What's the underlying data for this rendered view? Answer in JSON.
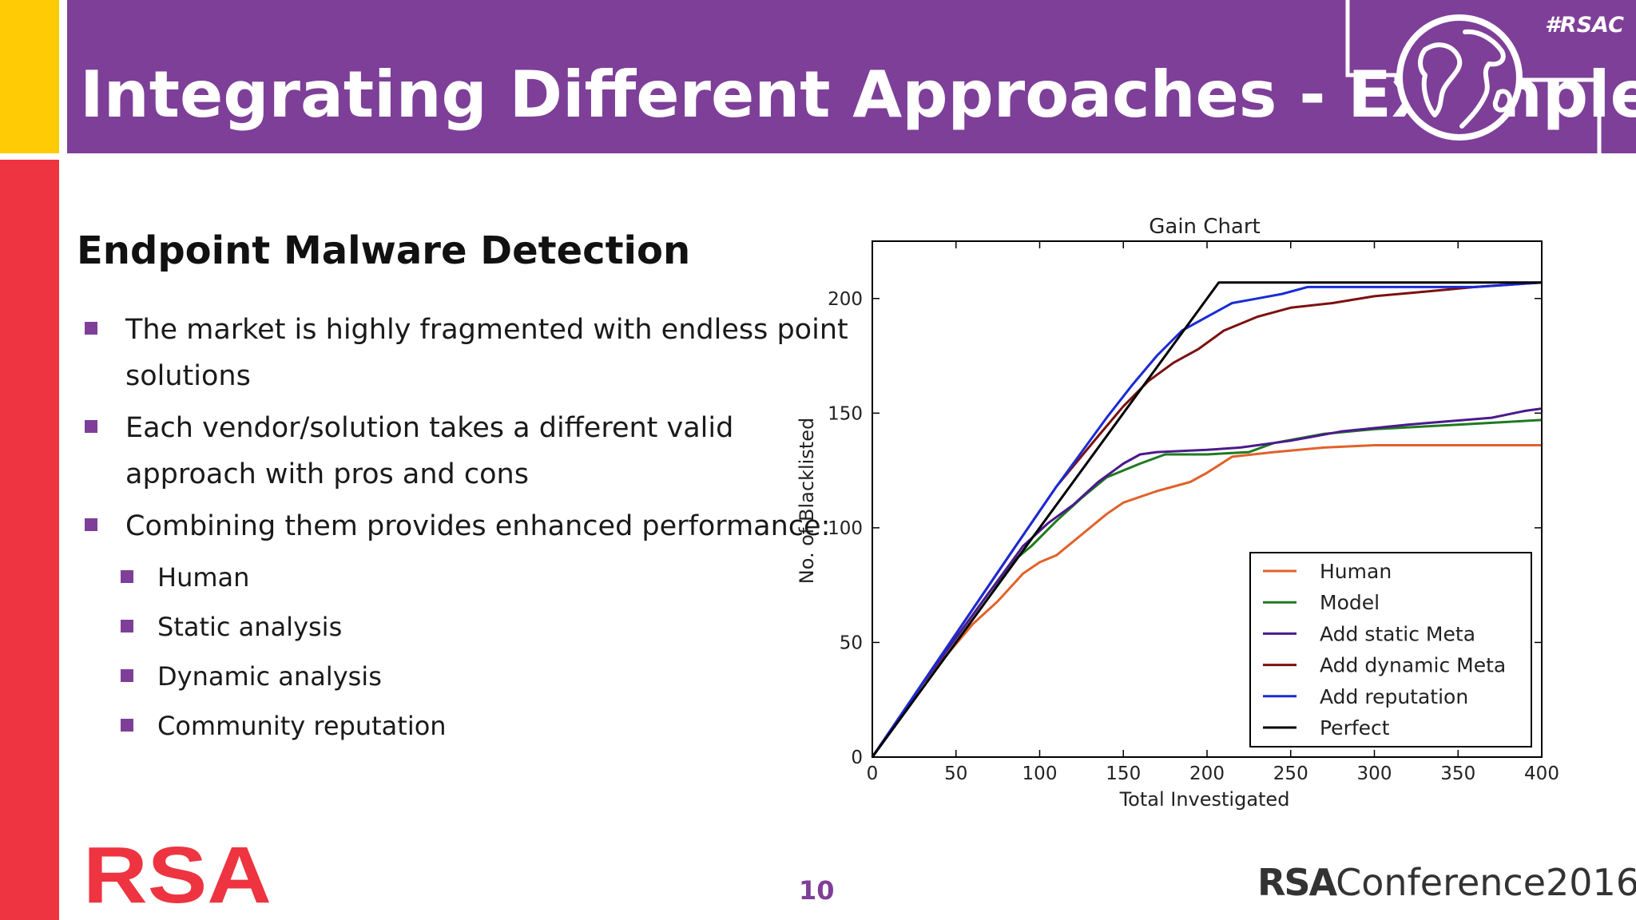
{
  "slide": {
    "title": "Integrating Different Approaches - Example",
    "hashtag": "#RSAC",
    "subtitle": "Endpoint Malware Detection",
    "bullets": [
      "The market is highly fragmented with endless point",
      "solutions",
      "Each vendor/solution takes a different valid",
      "approach with pros and cons",
      "Combining them provides enhanced performance:"
    ],
    "sub_bullets": [
      "Human",
      "Static analysis",
      "Dynamic analysis",
      "Community reputation"
    ],
    "page_number": "10",
    "footer_logo_left": "RSA",
    "footer_logo_right_brand": "RSA",
    "footer_logo_right_text": "Conference2016",
    "colors": {
      "purple": "#7E3F98",
      "red": "#EE3440",
      "yellow": "#FFCB05"
    }
  },
  "chart_data": {
    "type": "line",
    "title": "Gain Chart",
    "xlabel": "Total Investigated",
    "ylabel": "No. of Blacklisted",
    "xlim": [
      0,
      400
    ],
    "ylim": [
      0,
      225
    ],
    "xticks": [
      0,
      50,
      100,
      150,
      200,
      250,
      300,
      350,
      400
    ],
    "yticks": [
      0,
      50,
      100,
      150,
      200
    ],
    "legend_position": "lower-right",
    "series": [
      {
        "name": "Human",
        "color": "#E0622A",
        "points": [
          [
            0,
            0
          ],
          [
            30,
            32
          ],
          [
            45,
            45
          ],
          [
            60,
            58
          ],
          [
            75,
            68
          ],
          [
            90,
            80
          ],
          [
            100,
            85
          ],
          [
            110,
            88
          ],
          [
            125,
            97
          ],
          [
            140,
            106
          ],
          [
            150,
            111
          ],
          [
            170,
            116
          ],
          [
            190,
            120
          ],
          [
            200,
            124
          ],
          [
            215,
            131
          ],
          [
            240,
            133
          ],
          [
            270,
            135
          ],
          [
            300,
            136
          ],
          [
            400,
            136
          ]
        ]
      },
      {
        "name": "Model",
        "color": "#1F7A1F",
        "points": [
          [
            0,
            0
          ],
          [
            30,
            32
          ],
          [
            50,
            52
          ],
          [
            70,
            72
          ],
          [
            85,
            86
          ],
          [
            95,
            92
          ],
          [
            110,
            103
          ],
          [
            125,
            113
          ],
          [
            140,
            122
          ],
          [
            160,
            128
          ],
          [
            175,
            132
          ],
          [
            200,
            132
          ],
          [
            225,
            133
          ],
          [
            240,
            137
          ],
          [
            270,
            141
          ],
          [
            300,
            143
          ],
          [
            350,
            145
          ],
          [
            400,
            147
          ]
        ]
      },
      {
        "name": "Add static Meta",
        "color": "#4B1A8C",
        "points": [
          [
            0,
            0
          ],
          [
            30,
            32
          ],
          [
            50,
            52
          ],
          [
            70,
            72
          ],
          [
            90,
            92
          ],
          [
            105,
            102
          ],
          [
            120,
            110
          ],
          [
            135,
            120
          ],
          [
            150,
            128
          ],
          [
            160,
            132
          ],
          [
            170,
            133
          ],
          [
            200,
            134
          ],
          [
            220,
            135
          ],
          [
            250,
            138
          ],
          [
            280,
            142
          ],
          [
            320,
            145
          ],
          [
            370,
            148
          ],
          [
            390,
            151
          ],
          [
            400,
            152
          ]
        ]
      },
      {
        "name": "Add dynamic Meta",
        "color": "#7B1010",
        "points": [
          [
            0,
            0
          ],
          [
            40,
            43
          ],
          [
            80,
            86
          ],
          [
            110,
            118
          ],
          [
            135,
            140
          ],
          [
            150,
            153
          ],
          [
            165,
            164
          ],
          [
            180,
            172
          ],
          [
            195,
            178
          ],
          [
            210,
            186
          ],
          [
            230,
            192
          ],
          [
            250,
            196
          ],
          [
            275,
            198
          ],
          [
            300,
            201
          ],
          [
            330,
            203
          ],
          [
            360,
            205
          ],
          [
            380,
            206
          ],
          [
            400,
            207
          ]
        ]
      },
      {
        "name": "Add reputation",
        "color": "#1A2BD6",
        "points": [
          [
            0,
            0
          ],
          [
            40,
            43
          ],
          [
            80,
            86
          ],
          [
            110,
            118
          ],
          [
            140,
            148
          ],
          [
            155,
            162
          ],
          [
            170,
            175
          ],
          [
            185,
            186
          ],
          [
            200,
            192
          ],
          [
            215,
            198
          ],
          [
            230,
            200
          ],
          [
            245,
            202
          ],
          [
            260,
            205
          ],
          [
            300,
            205
          ],
          [
            360,
            205
          ],
          [
            400,
            207
          ]
        ]
      },
      {
        "name": "Perfect",
        "color": "#000000",
        "points": [
          [
            0,
            0
          ],
          [
            207,
            207
          ],
          [
            400,
            207
          ]
        ]
      }
    ]
  }
}
